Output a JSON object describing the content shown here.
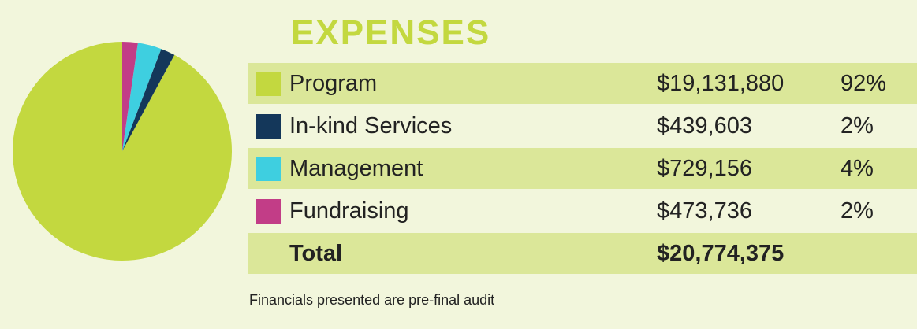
{
  "title": "EXPENSES",
  "note": "Financials presented are pre-final audit",
  "total": {
    "label": "Total",
    "amount": "$20,774,375"
  },
  "rows": [
    {
      "label": "Program",
      "amount": "$19,131,880",
      "pct": "92%"
    },
    {
      "label": "In-kind Services",
      "amount": "$439,603",
      "pct": "2%"
    },
    {
      "label": "Management",
      "amount": "$729,156",
      "pct": "4%"
    },
    {
      "label": "Fundraising",
      "amount": "$473,736",
      "pct": "2%"
    }
  ],
  "chart_data": {
    "type": "pie",
    "categories": [
      "Program",
      "In-kind Services",
      "Management",
      "Fundraising"
    ],
    "values": [
      19131880,
      439603,
      729156,
      473736
    ],
    "colors": [
      "#c3d83f",
      "#14375a",
      "#3ecfe0",
      "#c23d87"
    ],
    "title": "EXPENSES"
  }
}
